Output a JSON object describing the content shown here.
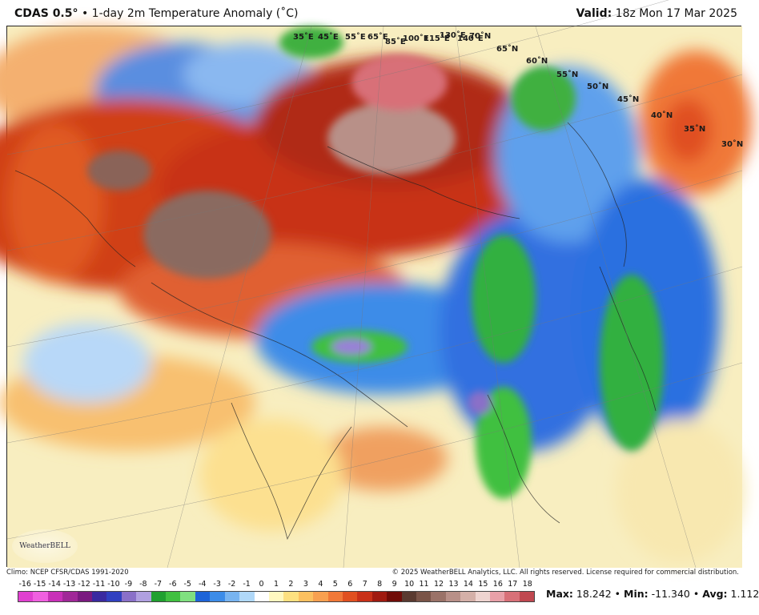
{
  "header": {
    "model": "CDAS 0.5°",
    "product": "• 1-day 2m Temperature Anomaly (˚C)",
    "valid_label": "Valid:",
    "valid_value": "18z Mon 17 Mar 2025"
  },
  "map": {
    "lat_labels": [
      "35˚E",
      "45˚E",
      "55˚E",
      "65˚E",
      "85˚E",
      "100˚E",
      "115˚E",
      "130˚E",
      "140˚E",
      "70˚N",
      "65˚N",
      "60˚N",
      "55˚N",
      "50˚N",
      "45˚N",
      "40˚N",
      "35˚N",
      "30˚N"
    ],
    "logo_text": "WeatherBELL"
  },
  "footer": {
    "climo": "Climo: NCEP CFSR/CDAS 1991-2020",
    "copyright": "© 2025 WeatherBELL Analytics, LLC. All rights reserved. License required for commercial distribution."
  },
  "stats": {
    "max_label": "Max:",
    "max": "18.242",
    "min_label": "Min:",
    "min": "-11.340",
    "avg_label": "Avg:",
    "avg": "1.112"
  },
  "chart_data": {
    "type": "heatmap",
    "title": "1-day 2m Temperature Anomaly (˚C)",
    "colorbar_ticks": [
      "-16",
      "-15",
      "-14",
      "-13",
      "-12",
      "-11",
      "-10",
      "-9",
      "-8",
      "-7",
      "-6",
      "-5",
      "-4",
      "-3",
      "-2",
      "-1",
      "0",
      "1",
      "2",
      "3",
      "4",
      "5",
      "6",
      "7",
      "8",
      "9",
      "10",
      "11",
      "12",
      "13",
      "14",
      "15",
      "16",
      "17",
      "18"
    ],
    "colorbar_colors": [
      "#e040d0",
      "#f060e0",
      "#c830b8",
      "#a02898",
      "#7a1a80",
      "#3a2aa0",
      "#3040c0",
      "#8a70c8",
      "#b0a0e0",
      "#20a030",
      "#40c040",
      "#80e080",
      "#1e64d8",
      "#3c8ce8",
      "#78b4f0",
      "#b0d8f8",
      "#ffffff",
      "#fff8c0",
      "#fde080",
      "#fcc060",
      "#f8a050",
      "#f07838",
      "#e05020",
      "#c83018",
      "#a01a10",
      "#700c08",
      "#5a3a30",
      "#7a5448",
      "#9a7268",
      "#b89088",
      "#d4b0a8",
      "#eed4d0",
      "#e8a0a8",
      "#d87078",
      "#c04850"
    ],
    "stats": {
      "max": 18.242,
      "min": -11.34,
      "avg": 1.112
    },
    "valid": "18z Mon 17 Mar 2025"
  }
}
